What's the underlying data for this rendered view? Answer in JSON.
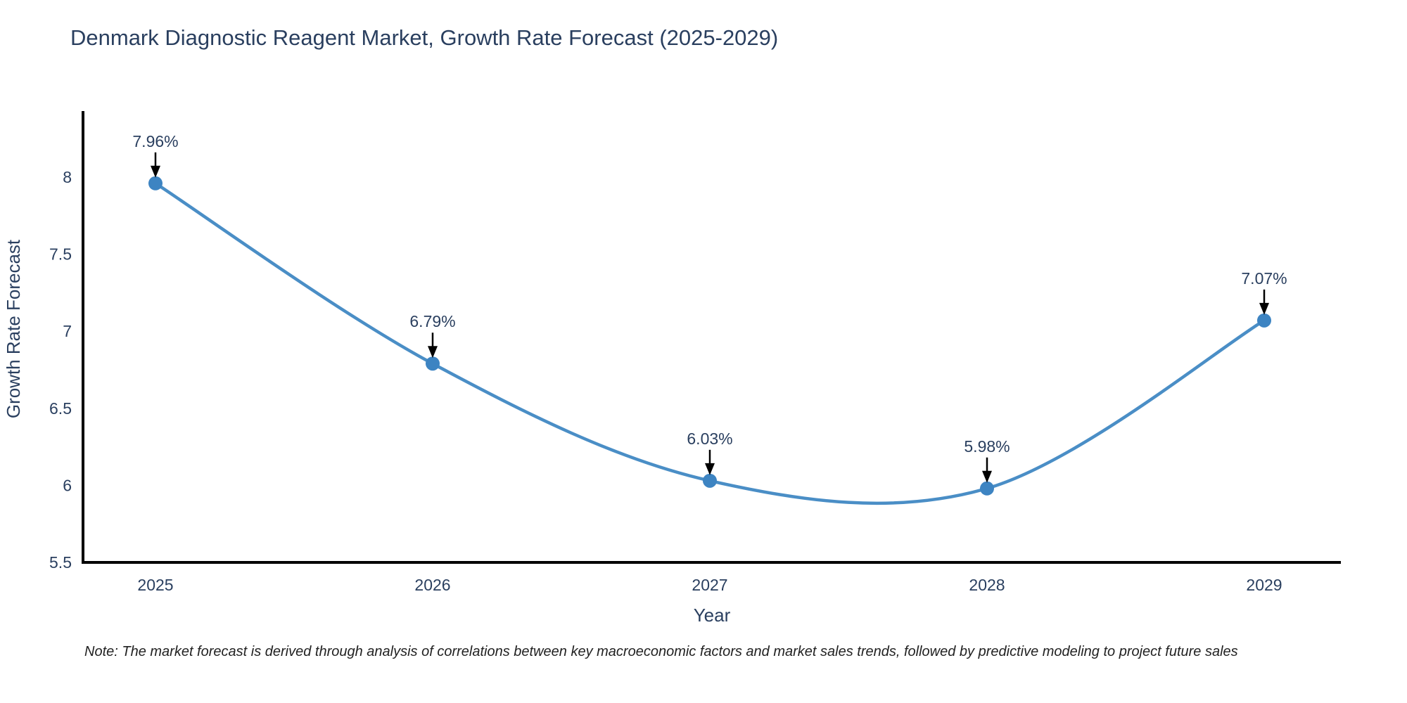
{
  "chart_data": {
    "type": "line",
    "title": "Denmark Diagnostic Reagent Market, Growth Rate Forecast (2025-2029)",
    "xlabel": "Year",
    "ylabel": "Growth Rate Forecast",
    "categories": [
      "2025",
      "2026",
      "2027",
      "2028",
      "2029"
    ],
    "series": [
      {
        "name": "Growth Rate Forecast",
        "values": [
          7.96,
          6.79,
          6.03,
          5.98,
          7.07
        ],
        "point_labels": [
          "7.96%",
          "6.79%",
          "6.03%",
          "5.98%",
          "7.07%"
        ]
      }
    ],
    "yticks": [
      "5.5",
      "6",
      "6.5",
      "7",
      "7.5",
      "8"
    ],
    "ytick_values": [
      5.5,
      6.0,
      6.5,
      7.0,
      7.5,
      8.0
    ],
    "ylim": [
      5.5,
      8.43
    ],
    "line_shape": "spline",
    "grid": false,
    "legend_position": "none",
    "colors": {
      "line": "#4a8ec6",
      "marker": "#3d84c2",
      "axis": "#000000",
      "annotation_arrow": "#000000",
      "text": "#2a3f5f",
      "note_text": "#222222",
      "background": "#ffffff"
    },
    "note": "Note: The market forecast is derived through analysis of correlations between key macroeconomic factors and market sales trends, followed by predictive modeling to project future sales"
  }
}
